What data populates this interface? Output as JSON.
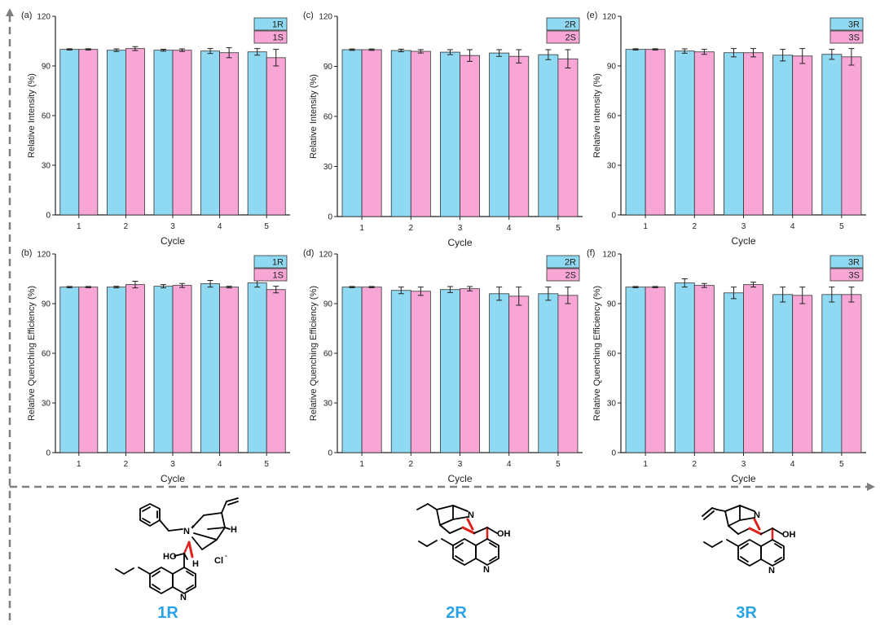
{
  "colors": {
    "r_fill": "#8fdaf2",
    "s_fill": "#f7a6d6",
    "bar_edge": "#333333",
    "frame_arrow": "#808080",
    "compound_label": "#2aa3e6"
  },
  "chart_data": [
    {
      "id": "a",
      "panel_label": "(a)",
      "type": "bar",
      "categories": [
        "1",
        "2",
        "3",
        "4",
        "5"
      ],
      "xlabel": "Cycle",
      "ylabel": "Relative Intensity (%)",
      "ylim": [
        0,
        120
      ],
      "yticks": [
        0,
        30,
        60,
        90,
        120
      ],
      "legend_position": "top-right",
      "series": [
        {
          "name": "1R",
          "values": [
            100,
            99.5,
            99.5,
            99,
            98.5
          ],
          "errors": [
            0.4,
            0.8,
            0.6,
            1.5,
            2.0
          ]
        },
        {
          "name": "1S",
          "values": [
            100,
            100.5,
            99.5,
            98,
            95
          ],
          "errors": [
            0.4,
            1.2,
            0.8,
            3.0,
            5.0
          ]
        }
      ]
    },
    {
      "id": "c",
      "panel_label": "(c)",
      "type": "bar",
      "categories": [
        "1",
        "2",
        "3",
        "4",
        "5"
      ],
      "xlabel": "Cycle",
      "ylabel": "Relative Intensity (%)",
      "ylim": [
        0,
        120
      ],
      "yticks": [
        0,
        30,
        60,
        90,
        120
      ],
      "legend_position": "top-right",
      "series": [
        {
          "name": "2R",
          "values": [
            100,
            99.5,
            98.5,
            98,
            97
          ],
          "errors": [
            0.4,
            0.8,
            1.5,
            2.0,
            3.0
          ]
        },
        {
          "name": "2S",
          "values": [
            100,
            99,
            96.5,
            96,
            94.5
          ],
          "errors": [
            0.4,
            1.0,
            3.5,
            4.0,
            5.5
          ]
        }
      ]
    },
    {
      "id": "e",
      "panel_label": "(e)",
      "type": "bar",
      "categories": [
        "1",
        "2",
        "3",
        "4",
        "5"
      ],
      "xlabel": "Cycle",
      "ylabel": "Relative Intensity (%)",
      "ylim": [
        0,
        120
      ],
      "yticks": [
        0,
        30,
        60,
        90,
        120
      ],
      "legend_position": "top-right",
      "series": [
        {
          "name": "3R",
          "values": [
            100,
            99,
            98,
            96.5,
            97
          ],
          "errors": [
            0.4,
            1.3,
            2.5,
            3.5,
            3.0
          ]
        },
        {
          "name": "3S",
          "values": [
            100,
            98.5,
            98,
            96,
            95.5
          ],
          "errors": [
            0.4,
            1.5,
            2.5,
            4.5,
            5.0
          ]
        }
      ]
    },
    {
      "id": "b",
      "panel_label": "(b)",
      "type": "bar",
      "categories": [
        "1",
        "2",
        "3",
        "4",
        "5"
      ],
      "xlabel": "Cycle",
      "ylabel": "Relative Quenching Efficiency (%)",
      "ylim": [
        0,
        120
      ],
      "yticks": [
        0,
        30,
        60,
        90,
        120
      ],
      "legend_position": "top-right",
      "series": [
        {
          "name": "1R",
          "values": [
            100,
            100,
            100.5,
            102,
            102.5
          ],
          "errors": [
            0.4,
            0.5,
            1.0,
            2.0,
            2.5
          ]
        },
        {
          "name": "1S",
          "values": [
            100,
            101.5,
            101,
            100,
            98.5
          ],
          "errors": [
            0.4,
            2.0,
            1.2,
            0.5,
            2.0
          ]
        }
      ]
    },
    {
      "id": "d",
      "panel_label": "(d)",
      "type": "bar",
      "categories": [
        "1",
        "2",
        "3",
        "4",
        "5"
      ],
      "xlabel": "Cycle",
      "ylabel": "Relative Quenching Efficiency (%)",
      "ylim": [
        0,
        120
      ],
      "yticks": [
        0,
        30,
        60,
        90,
        120
      ],
      "legend_position": "top-right",
      "series": [
        {
          "name": "2R",
          "values": [
            100,
            98,
            98.5,
            96,
            96
          ],
          "errors": [
            0.4,
            2.0,
            1.8,
            4.0,
            4.0
          ]
        },
        {
          "name": "2S",
          "values": [
            100,
            97.5,
            99,
            94.5,
            95
          ],
          "errors": [
            0.4,
            2.5,
            1.3,
            5.5,
            5.0
          ]
        }
      ]
    },
    {
      "id": "f",
      "panel_label": "(f)",
      "type": "bar",
      "categories": [
        "1",
        "2",
        "3",
        "4",
        "5"
      ],
      "xlabel": "Cycle",
      "ylabel": "Relative Quenching Efficiency (%)",
      "ylim": [
        0,
        120
      ],
      "yticks": [
        0,
        30,
        60,
        90,
        120
      ],
      "legend_position": "top-right",
      "series": [
        {
          "name": "3R",
          "values": [
            100,
            102.5,
            96.5,
            95.5,
            95.5
          ],
          "errors": [
            0.4,
            2.5,
            3.5,
            4.5,
            4.5
          ]
        },
        {
          "name": "3S",
          "values": [
            100,
            101,
            101.5,
            95,
            95.5
          ],
          "errors": [
            0.4,
            1.2,
            1.5,
            5.0,
            4.5
          ]
        }
      ]
    }
  ],
  "structures": [
    {
      "label": "1R",
      "atom_labels": [
        "N",
        "+",
        "H",
        "H",
        "HO",
        "Cl",
        "-",
        "N"
      ]
    },
    {
      "label": "2R",
      "atom_labels": [
        "N",
        "OH",
        "N"
      ]
    },
    {
      "label": "3R",
      "atom_labels": [
        "N",
        "OH",
        "N"
      ]
    }
  ]
}
